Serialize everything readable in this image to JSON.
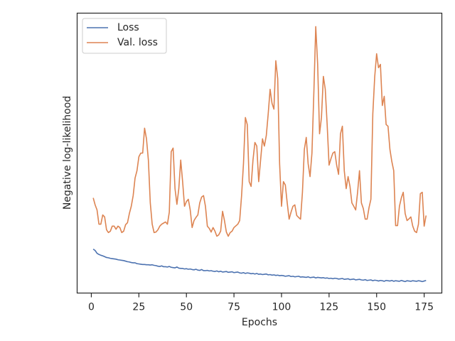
{
  "chart_data": {
    "type": "line",
    "xlabel": "Epochs",
    "ylabel": "Negative log-likelihood",
    "xlim": [
      -7.46,
      184.3
    ],
    "xticks": [
      0,
      25,
      50,
      75,
      100,
      125,
      150,
      175
    ],
    "ylim": [
      0,
      10
    ],
    "legend": "upper left",
    "x": [
      1,
      2,
      3,
      4,
      5,
      6,
      7,
      8,
      9,
      10,
      11,
      12,
      13,
      14,
      15,
      16,
      17,
      18,
      19,
      20,
      21,
      22,
      23,
      24,
      25,
      26,
      27,
      28,
      29,
      30,
      31,
      32,
      33,
      34,
      35,
      36,
      37,
      38,
      39,
      40,
      41,
      42,
      43,
      44,
      45,
      46,
      47,
      48,
      49,
      50,
      51,
      52,
      53,
      54,
      55,
      56,
      57,
      58,
      59,
      60,
      61,
      62,
      63,
      64,
      65,
      66,
      67,
      68,
      69,
      70,
      71,
      72,
      73,
      74,
      75,
      76,
      77,
      78,
      79,
      80,
      81,
      82,
      83,
      84,
      85,
      86,
      87,
      88,
      89,
      90,
      91,
      92,
      93,
      94,
      95,
      96,
      97,
      98,
      99,
      100,
      101,
      102,
      103,
      104,
      105,
      106,
      107,
      108,
      109,
      110,
      111,
      112,
      113,
      114,
      115,
      116,
      117,
      118,
      119,
      120,
      121,
      122,
      123,
      124,
      125,
      126,
      127,
      128,
      129,
      130,
      131,
      132,
      133,
      134,
      135,
      136,
      137,
      138,
      139,
      140,
      141,
      142,
      143,
      144,
      145,
      146,
      147,
      148,
      149,
      150,
      151,
      152,
      153,
      154,
      155,
      156,
      157,
      158,
      159,
      160,
      161,
      162,
      163,
      164,
      165,
      166,
      167,
      168,
      169,
      170,
      171,
      172,
      173,
      174,
      175,
      176
    ],
    "series": [
      {
        "name": "Loss",
        "color": "#4c72b0",
        "values": [
          1.57,
          1.52,
          1.42,
          1.38,
          1.35,
          1.33,
          1.3,
          1.27,
          1.26,
          1.24,
          1.23,
          1.22,
          1.21,
          1.19,
          1.18,
          1.17,
          1.16,
          1.14,
          1.12,
          1.11,
          1.09,
          1.08,
          1.08,
          1.05,
          1.04,
          1.03,
          1.02,
          1.02,
          1.01,
          1.01,
          1.0,
          1.01,
          0.99,
          0.98,
          0.96,
          0.95,
          0.97,
          0.94,
          0.94,
          0.93,
          0.95,
          0.92,
          0.91,
          0.9,
          0.93,
          0.89,
          0.88,
          0.88,
          0.86,
          0.87,
          0.85,
          0.86,
          0.84,
          0.83,
          0.85,
          0.82,
          0.81,
          0.84,
          0.8,
          0.8,
          0.81,
          0.79,
          0.8,
          0.78,
          0.77,
          0.79,
          0.76,
          0.78,
          0.75,
          0.76,
          0.77,
          0.74,
          0.75,
          0.76,
          0.73,
          0.74,
          0.75,
          0.72,
          0.71,
          0.73,
          0.7,
          0.72,
          0.71,
          0.69,
          0.7,
          0.68,
          0.7,
          0.67,
          0.68,
          0.66,
          0.67,
          0.68,
          0.65,
          0.66,
          0.64,
          0.65,
          0.63,
          0.64,
          0.62,
          0.63,
          0.62,
          0.6,
          0.61,
          0.62,
          0.59,
          0.6,
          0.58,
          0.59,
          0.6,
          0.57,
          0.58,
          0.57,
          0.56,
          0.58,
          0.55,
          0.56,
          0.57,
          0.54,
          0.56,
          0.55,
          0.54,
          0.55,
          0.53,
          0.54,
          0.52,
          0.53,
          0.51,
          0.53,
          0.52,
          0.5,
          0.51,
          0.52,
          0.49,
          0.5,
          0.51,
          0.48,
          0.49,
          0.5,
          0.47,
          0.48,
          0.49,
          0.47,
          0.46,
          0.48,
          0.45,
          0.46,
          0.47,
          0.44,
          0.46,
          0.45,
          0.43,
          0.45,
          0.44,
          0.42,
          0.45,
          0.44,
          0.43,
          0.45,
          0.42,
          0.44,
          0.43,
          0.42,
          0.45,
          0.43,
          0.41,
          0.44,
          0.43,
          0.42,
          0.44,
          0.43,
          0.42,
          0.44,
          0.43,
          0.41,
          0.43,
          0.45
        ]
      },
      {
        "name": "Val. loss",
        "color": "#dd8452",
        "values": [
          3.4,
          3.15,
          2.97,
          2.46,
          2.46,
          2.79,
          2.72,
          2.26,
          2.16,
          2.21,
          2.39,
          2.39,
          2.28,
          2.39,
          2.34,
          2.16,
          2.21,
          2.44,
          2.51,
          2.84,
          3.1,
          3.48,
          4.11,
          4.37,
          4.87,
          5.0,
          5.0,
          5.89,
          5.51,
          4.75,
          3.22,
          2.46,
          2.16,
          2.18,
          2.26,
          2.39,
          2.46,
          2.5,
          2.54,
          2.46,
          2.89,
          5.05,
          5.18,
          3.73,
          3.17,
          3.73,
          4.75,
          3.98,
          3.1,
          3.27,
          3.35,
          2.97,
          2.34,
          2.59,
          2.7,
          2.79,
          3.22,
          3.43,
          3.48,
          3.1,
          2.39,
          2.31,
          2.18,
          2.34,
          2.21,
          2.03,
          2.08,
          2.21,
          2.92,
          2.59,
          2.18,
          2.03,
          2.16,
          2.21,
          2.34,
          2.4,
          2.46,
          2.59,
          3.48,
          4.62,
          6.27,
          6.02,
          3.98,
          3.81,
          4.75,
          5.38,
          5.25,
          3.98,
          4.75,
          5.51,
          5.25,
          5.63,
          6.4,
          7.28,
          6.78,
          6.57,
          8.3,
          7.66,
          4.62,
          3.1,
          3.98,
          3.86,
          3.22,
          2.64,
          2.89,
          3.1,
          3.15,
          2.77,
          2.7,
          2.64,
          3.6,
          5.13,
          5.56,
          4.62,
          4.16,
          5.0,
          7.16,
          9.52,
          8.17,
          5.69,
          6.27,
          7.74,
          7.28,
          6.02,
          4.57,
          4.8,
          5.0,
          5.05,
          4.57,
          4.24,
          5.69,
          5.96,
          4.37,
          3.73,
          4.16,
          3.81,
          3.22,
          3.1,
          2.97,
          3.6,
          4.37,
          3.22,
          3.02,
          2.64,
          2.64,
          3.05,
          3.35,
          6.4,
          7.72,
          8.55,
          8.05,
          8.17,
          6.7,
          7.03,
          6.02,
          5.96,
          5.13,
          4.7,
          4.37,
          2.41,
          2.41,
          3.1,
          3.4,
          3.6,
          2.84,
          2.59,
          2.65,
          2.72,
          2.39,
          2.21,
          2.16,
          2.46,
          3.55,
          3.6,
          2.39,
          2.77
        ]
      }
    ]
  }
}
